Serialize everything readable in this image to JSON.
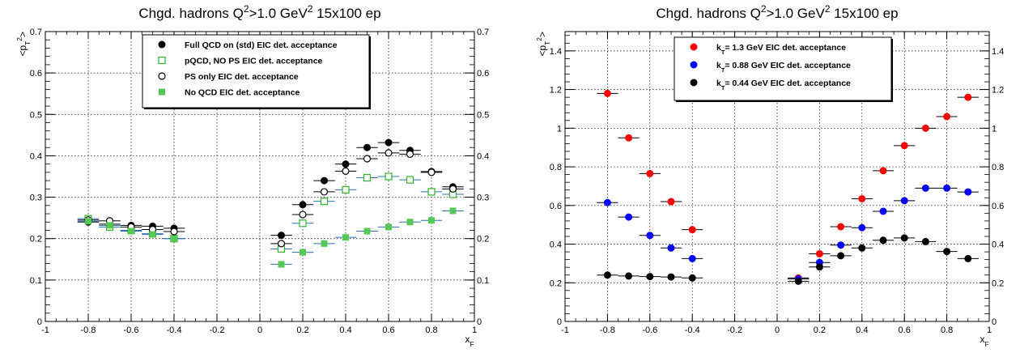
{
  "chart_data": [
    {
      "type": "scatter",
      "title": "Chgd. hadrons Q^2>1.0 GeV^2 15x100 ep",
      "xlabel": "x_F",
      "ylabel": "<p_T^2>",
      "xlim": [
        -1,
        1
      ],
      "ylim": [
        0,
        0.7
      ],
      "x_ticks": [
        "-1",
        "-0.8",
        "-0.6",
        "-0.4",
        "-0.2",
        "0",
        "0.2",
        "0.4",
        "0.6",
        "0.8",
        "1"
      ],
      "y_ticks": [
        "0",
        "0.1",
        "0.2",
        "0.3",
        "0.4",
        "0.5",
        "0.6",
        "0.7"
      ],
      "grid": true,
      "legend_position": "top-center",
      "x_error": 0.05,
      "series": [
        {
          "name": "Full QCD on (std) EIC det. acceptance",
          "marker": "filled-circle",
          "color": "#000000",
          "x": [
            -0.8,
            -0.7,
            -0.6,
            -0.5,
            -0.4,
            0.1,
            0.2,
            0.3,
            0.4,
            0.5,
            0.6,
            0.7,
            0.8,
            0.9
          ],
          "y": [
            0.24,
            0.235,
            0.232,
            0.23,
            0.225,
            0.208,
            0.282,
            0.34,
            0.38,
            0.42,
            0.432,
            0.413,
            0.362,
            0.325
          ]
        },
        {
          "name": "pQCD, NO PS EIC det. acceptance",
          "marker": "open-square",
          "color": "#2db52d",
          "x": [
            -0.8,
            -0.7,
            -0.6,
            -0.5,
            -0.4,
            0.1,
            0.2,
            0.3,
            0.4,
            0.5,
            0.6,
            0.7,
            0.8,
            0.9
          ],
          "y": [
            0.248,
            0.228,
            0.22,
            0.212,
            0.2,
            0.175,
            0.237,
            0.29,
            0.318,
            0.347,
            0.35,
            0.342,
            0.313,
            0.307
          ]
        },
        {
          "name": "PS only EIC det. acceptance",
          "marker": "open-circle",
          "color": "#000000",
          "x": [
            -0.8,
            -0.7,
            -0.6,
            -0.5,
            -0.4,
            0.1,
            0.2,
            0.3,
            0.4,
            0.5,
            0.6,
            0.7,
            0.8,
            0.9
          ],
          "y": [
            0.245,
            0.243,
            0.228,
            0.222,
            0.217,
            0.188,
            0.258,
            0.313,
            0.363,
            0.393,
            0.407,
            0.404,
            0.36,
            0.32
          ]
        },
        {
          "name": "No QCD EIC det. acceptance",
          "marker": "filled-square",
          "color": "#55c855",
          "x": [
            -0.8,
            -0.7,
            -0.6,
            -0.5,
            -0.4,
            0.1,
            0.2,
            0.3,
            0.4,
            0.5,
            0.6,
            0.7,
            0.8,
            0.9
          ],
          "y": [
            0.242,
            0.232,
            0.218,
            0.21,
            0.2,
            0.138,
            0.167,
            0.188,
            0.203,
            0.218,
            0.228,
            0.24,
            0.244,
            0.267
          ]
        }
      ]
    },
    {
      "type": "scatter",
      "title": "Chgd. hadrons Q^2>1.0 GeV^2 15x100 ep",
      "xlabel": "x_F",
      "ylabel": "<p_T^2>",
      "xlim": [
        -1,
        1
      ],
      "ylim": [
        0,
        1.5
      ],
      "x_ticks": [
        "-1",
        "-0.8",
        "-0.6",
        "-0.4",
        "-0.2",
        "0",
        "0.2",
        "0.4",
        "0.6",
        "0.8",
        "1"
      ],
      "y_ticks": [
        "0",
        "0.2",
        "0.4",
        "0.6",
        "0.8",
        "1",
        "1.2",
        "1.4"
      ],
      "grid": true,
      "legend_position": "top-center",
      "x_error": 0.05,
      "series": [
        {
          "name": "k_T= 1.3 GeV EIC det. acceptance",
          "marker": "filled-circle",
          "color": "#ff0000",
          "x": [
            -0.8,
            -0.7,
            -0.6,
            -0.5,
            -0.4,
            0.1,
            0.2,
            0.3,
            0.4,
            0.5,
            0.6,
            0.7,
            0.8,
            0.9
          ],
          "y": [
            1.18,
            0.95,
            0.765,
            0.62,
            0.475,
            0.225,
            0.35,
            0.49,
            0.635,
            0.78,
            0.91,
            1.0,
            1.06,
            1.16
          ]
        },
        {
          "name": "k_T= 0.88 GeV EIC det. acceptance",
          "marker": "filled-circle",
          "color": "#0000ff",
          "x": [
            -0.8,
            -0.7,
            -0.6,
            -0.5,
            -0.4,
            0.1,
            0.2,
            0.3,
            0.4,
            0.5,
            0.6,
            0.7,
            0.8,
            0.9
          ],
          "y": [
            0.615,
            0.54,
            0.445,
            0.38,
            0.325,
            0.22,
            0.305,
            0.395,
            0.485,
            0.57,
            0.625,
            0.69,
            0.69,
            0.67
          ]
        },
        {
          "name": "k_T= 0.44 GeV EIC det. acceptance",
          "marker": "filled-circle",
          "color": "#000000",
          "x": [
            -0.8,
            -0.7,
            -0.6,
            -0.5,
            -0.4,
            0.1,
            0.2,
            0.3,
            0.4,
            0.5,
            0.6,
            0.7,
            0.8,
            0.9
          ],
          "y": [
            0.24,
            0.235,
            0.232,
            0.23,
            0.225,
            0.208,
            0.282,
            0.34,
            0.38,
            0.42,
            0.432,
            0.413,
            0.362,
            0.325
          ]
        }
      ]
    }
  ]
}
